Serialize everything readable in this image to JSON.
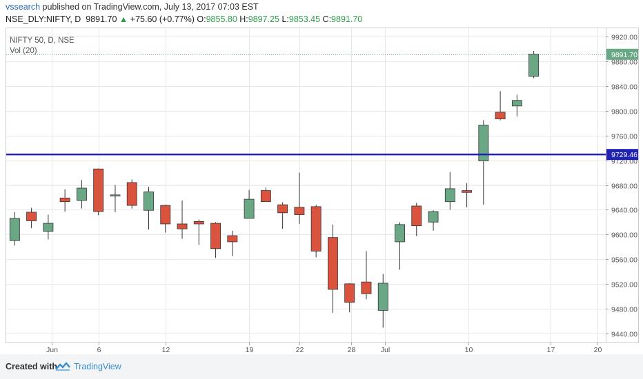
{
  "header": {
    "author": "vssearch",
    "published_text": "published on TradingView.com, July 13, 2017 07:03 EST"
  },
  "symbol_line": {
    "symbol": "NSE_DLY:NIFTY, D",
    "last": "9891.70",
    "change_arrow": "▲",
    "change": "+75.60 (+0.77%)",
    "o_label": "O:",
    "o_val": "9855.80",
    "h_label": "H:",
    "h_val": "9897.25",
    "l_label": "L:",
    "l_val": "9853.45",
    "c_label": "C:",
    "c_val": "9891.70"
  },
  "footer": {
    "created_with": "Created with",
    "brand": "TradingView",
    "brand_icon": "tradingview-logo-icon"
  },
  "colors": {
    "up": "#6aa784",
    "down": "#d9533f",
    "hline": "#1f22b3",
    "grid": "#e6e8ec",
    "last_price_tag": "#6aa784",
    "hline_tag": "#1f22b3"
  },
  "chart_data": {
    "type": "candlestick",
    "legend_lines": [
      "NIFTY 50, D, NSE",
      "Vol (20)"
    ],
    "y_ticks": [
      9920,
      9880,
      9840,
      9800,
      9760,
      9720,
      9680,
      9640,
      9600,
      9560,
      9520,
      9480,
      9440
    ],
    "y_range": [
      9425,
      9935
    ],
    "x_ticks": [
      {
        "label": "Jun",
        "idx": 2.2
      },
      {
        "label": "6",
        "idx": 5
      },
      {
        "label": "12",
        "idx": 9
      },
      {
        "label": "19",
        "idx": 14
      },
      {
        "label": "22",
        "idx": 17
      },
      {
        "label": "28",
        "idx": 20.1
      },
      {
        "label": "Jul",
        "idx": 22.1
      },
      {
        "label": "10",
        "idx": 27.1
      },
      {
        "label": "17",
        "idx": 32
      },
      {
        "label": "20",
        "idx": 34.8
      }
    ],
    "x_index_range": [
      -0.55,
      35.3
    ],
    "horizontal_line": {
      "value": 9729.46,
      "label": "9729.46"
    },
    "last_price": {
      "value": 9891.7,
      "label": "9891.70"
    },
    "candles": [
      {
        "o": 9590,
        "h": 9636,
        "l": 9582,
        "c": 9626
      },
      {
        "o": 9636,
        "h": 9643,
        "l": 9610,
        "c": 9622
      },
      {
        "o": 9605,
        "h": 9632,
        "l": 9592,
        "c": 9618
      },
      {
        "o": 9659,
        "h": 9673,
        "l": 9637,
        "c": 9653
      },
      {
        "o": 9655,
        "h": 9688,
        "l": 9642,
        "c": 9675
      },
      {
        "o": 9706,
        "h": 9707,
        "l": 9631,
        "c": 9637
      },
      {
        "o": 9664,
        "h": 9680,
        "l": 9636,
        "c": 9664
      },
      {
        "o": 9684,
        "h": 9689,
        "l": 9642,
        "c": 9647
      },
      {
        "o": 9639,
        "h": 9677,
        "l": 9608,
        "c": 9669
      },
      {
        "o": 9647,
        "h": 9648,
        "l": 9603,
        "c": 9617
      },
      {
        "o": 9617,
        "h": 9655,
        "l": 9593,
        "c": 9609
      },
      {
        "o": 9621,
        "h": 9624,
        "l": 9583,
        "c": 9617
      },
      {
        "o": 9618,
        "h": 9620,
        "l": 9562,
        "c": 9577
      },
      {
        "o": 9598,
        "h": 9606,
        "l": 9565,
        "c": 9588
      },
      {
        "o": 9626,
        "h": 9672,
        "l": 9626,
        "c": 9657
      },
      {
        "o": 9671,
        "h": 9676,
        "l": 9653,
        "c": 9653
      },
      {
        "o": 9648,
        "h": 9652,
        "l": 9609,
        "c": 9635
      },
      {
        "o": 9644,
        "h": 9700,
        "l": 9617,
        "c": 9632
      },
      {
        "o": 9645,
        "h": 9648,
        "l": 9563,
        "c": 9573
      },
      {
        "o": 9595,
        "h": 9616,
        "l": 9473,
        "c": 9511
      },
      {
        "o": 9520,
        "h": 9521,
        "l": 9474,
        "c": 9490
      },
      {
        "o": 9523,
        "h": 9573,
        "l": 9495,
        "c": 9504
      },
      {
        "o": 9477,
        "h": 9536,
        "l": 9449,
        "c": 9521
      },
      {
        "o": 9588,
        "h": 9620,
        "l": 9543,
        "c": 9616
      },
      {
        "o": 9646,
        "h": 9651,
        "l": 9597,
        "c": 9614
      },
      {
        "o": 9620,
        "h": 9639,
        "l": 9606,
        "c": 9637
      },
      {
        "o": 9653,
        "h": 9701,
        "l": 9640,
        "c": 9674
      },
      {
        "o": 9671,
        "h": 9683,
        "l": 9644,
        "c": 9668
      },
      {
        "o": 9719,
        "h": 9785,
        "l": 9648,
        "c": 9777
      },
      {
        "o": 9798,
        "h": 9832,
        "l": 9785,
        "c": 9787
      },
      {
        "o": 9808,
        "h": 9826,
        "l": 9791,
        "c": 9817
      },
      {
        "o": 9856,
        "h": 9897,
        "l": 9853,
        "c": 9892
      }
    ],
    "x_positions": [
      0,
      1,
      2,
      3,
      4,
      5,
      6,
      7,
      8,
      9,
      10,
      11,
      12,
      13,
      14,
      15,
      16,
      17,
      18,
      19,
      20,
      21,
      22,
      23,
      24,
      25,
      26,
      27,
      28,
      29,
      30,
      31
    ]
  }
}
